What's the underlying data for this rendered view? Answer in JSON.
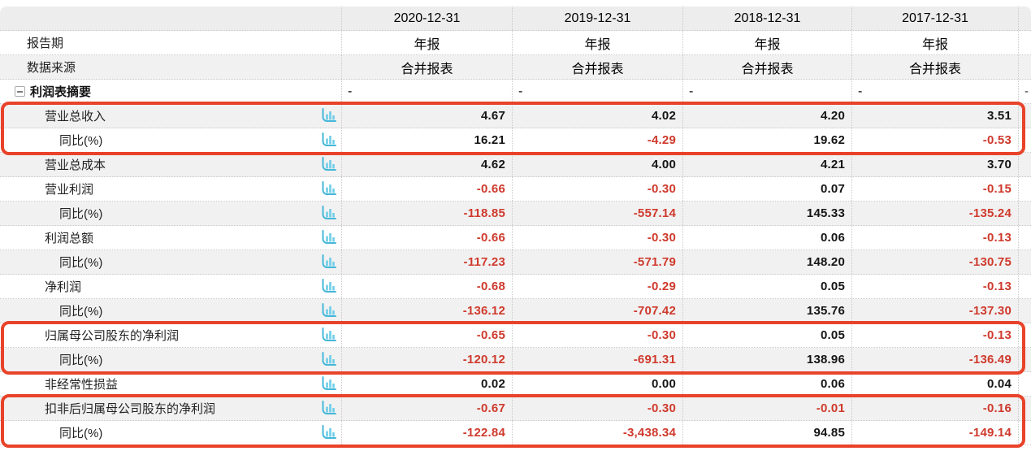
{
  "table": {
    "date_columns": [
      "2020-12-31",
      "2019-12-31",
      "2018-12-31",
      "2017-12-31"
    ],
    "meta_rows": [
      {
        "label": "报告期",
        "values": [
          "年报",
          "年报",
          "年报",
          "年报"
        ]
      },
      {
        "label": "数据来源",
        "values": [
          "合并报表",
          "合并报表",
          "合并报表",
          "合并报表"
        ]
      }
    ],
    "section_row": {
      "label": "利润表摘要",
      "placeholder": "-"
    },
    "data_rows": [
      {
        "label": "营业总收入",
        "sub": false,
        "values": [
          "4.67",
          "4.02",
          "4.20",
          "3.51"
        ]
      },
      {
        "label": "同比(%)",
        "sub": true,
        "values": [
          "16.21",
          "-4.29",
          "19.62",
          "-0.53"
        ]
      },
      {
        "label": "营业总成本",
        "sub": false,
        "values": [
          "4.62",
          "4.00",
          "4.21",
          "3.70"
        ]
      },
      {
        "label": "营业利润",
        "sub": false,
        "values": [
          "-0.66",
          "-0.30",
          "0.07",
          "-0.15"
        ]
      },
      {
        "label": "同比(%)",
        "sub": true,
        "values": [
          "-118.85",
          "-557.14",
          "145.33",
          "-135.24"
        ]
      },
      {
        "label": "利润总额",
        "sub": false,
        "values": [
          "-0.66",
          "-0.30",
          "0.06",
          "-0.13"
        ]
      },
      {
        "label": "同比(%)",
        "sub": true,
        "values": [
          "-117.23",
          "-571.79",
          "148.20",
          "-130.75"
        ]
      },
      {
        "label": "净利润",
        "sub": false,
        "values": [
          "-0.68",
          "-0.29",
          "0.05",
          "-0.13"
        ]
      },
      {
        "label": "同比(%)",
        "sub": true,
        "values": [
          "-136.12",
          "-707.42",
          "135.76",
          "-137.30"
        ]
      },
      {
        "label": "归属母公司股东的净利润",
        "sub": false,
        "values": [
          "-0.65",
          "-0.30",
          "0.05",
          "-0.13"
        ]
      },
      {
        "label": "同比(%)",
        "sub": true,
        "values": [
          "-120.12",
          "-691.31",
          "138.96",
          "-136.49"
        ]
      },
      {
        "label": "非经常性损益",
        "sub": false,
        "values": [
          "0.02",
          "0.00",
          "0.06",
          "0.04"
        ]
      },
      {
        "label": "扣非后归属母公司股东的净利润",
        "sub": false,
        "values": [
          "-0.67",
          "-0.30",
          "-0.01",
          "-0.16"
        ]
      },
      {
        "label": "同比(%)",
        "sub": true,
        "values": [
          "-122.84",
          "-3,438.34",
          "94.85",
          "-149.14"
        ]
      }
    ],
    "row_icon": "bar-chart-icon",
    "collapse_icon": "minus-box-icon",
    "highlight_boxes": [
      {
        "from": 0,
        "to": 1
      },
      {
        "from": 9,
        "to": 10
      },
      {
        "from": 12,
        "to": 13
      }
    ]
  },
  "colors": {
    "band_gray": "#f1f1f1",
    "header_gray": "#ededed",
    "grid_dotted": "#c9c9c9",
    "value_black": "#151515",
    "value_negative_red": "#cf3a2d",
    "highlight_border_red": "#e8432a",
    "icon_axis_teal": "#45b7d9",
    "icon_bar_blue": "#6fcde7"
  }
}
